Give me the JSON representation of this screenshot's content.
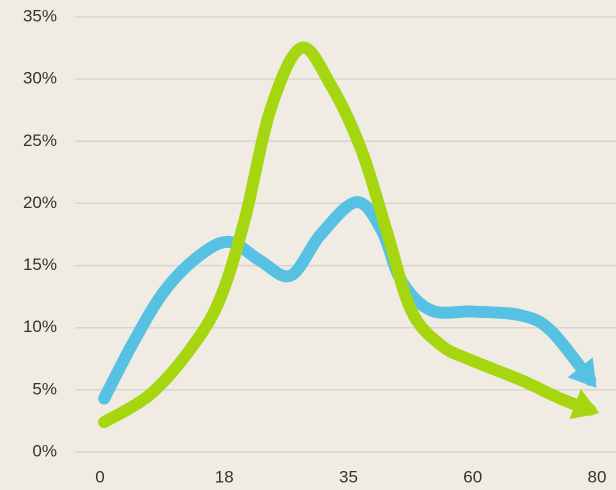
{
  "chart_data": {
    "type": "line",
    "xlim": [
      0,
      80
    ],
    "xticks": [
      0,
      18,
      35,
      60,
      80
    ],
    "ylim": [
      0,
      35
    ],
    "yticks": [
      {
        "value": 0,
        "label": "0%"
      },
      {
        "value": 5,
        "label": "5%"
      },
      {
        "value": 10,
        "label": "10%"
      },
      {
        "value": 15,
        "label": "15%"
      },
      {
        "value": 20,
        "label": "20%"
      },
      {
        "value": 25,
        "label": "25%"
      },
      {
        "value": 30,
        "label": "30%"
      },
      {
        "value": 35,
        "label": "35%"
      }
    ],
    "grid": true,
    "series": [
      {
        "color": "#56c1e3",
        "x": [
          0.6,
          5,
          9.4,
          14.4,
          18.7,
          22.9,
          27.1,
          31.2,
          36.6,
          41.6,
          45.6,
          51.6,
          60,
          67.7,
          72.5,
          78.9
        ],
        "values": [
          4.3,
          9.0,
          13.0,
          15.8,
          16.9,
          15.4,
          14.2,
          17.5,
          20.1,
          17.9,
          13.8,
          11.4,
          11.3,
          11.0,
          9.8,
          5.8
        ]
      },
      {
        "color": "#a5d610",
        "x": [
          0.6,
          7.2,
          13,
          17.3,
          20.8,
          24.3,
          28.5,
          32.6,
          37.6,
          42.6,
          47.6,
          53.6,
          59.6,
          67.7,
          74.1,
          78.9
        ],
        "values": [
          2.4,
          4.6,
          8.2,
          12.2,
          18.7,
          27.5,
          32.5,
          29.5,
          24.3,
          17.9,
          11.4,
          8.6,
          7.4,
          5.8,
          4.3,
          3.4
        ]
      }
    ]
  }
}
